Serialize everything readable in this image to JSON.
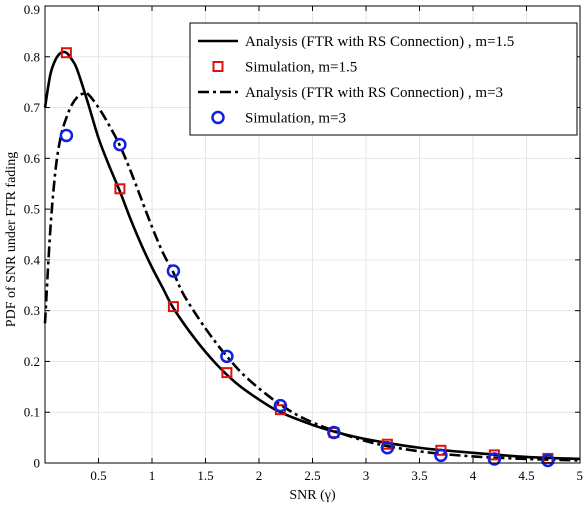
{
  "chart_data": {
    "type": "line",
    "xlabel": "SNR (γ)",
    "ylabel": "PDF of SNR under FTR fading",
    "xlim": [
      0,
      5
    ],
    "ylim": [
      0,
      0.9
    ],
    "x_ticks": [
      0.5,
      1,
      1.5,
      2,
      2.5,
      3,
      3.5,
      4,
      4.5,
      5
    ],
    "x_tick_labels": [
      "0.5",
      "1",
      "1.5",
      "2",
      "2.5",
      "3",
      "3.5",
      "4",
      "4.5",
      "5"
    ],
    "y_ticks": [
      0,
      0.1,
      0.2,
      0.3,
      0.4,
      0.5,
      0.6,
      0.7,
      0.8,
      0.9
    ],
    "y_tick_labels": [
      "0",
      "0.1",
      "0.2",
      "0.3",
      "0.4",
      "0.5",
      "0.6",
      "0.7",
      "0.8",
      "0.9"
    ],
    "grid": true,
    "legend_position": "top-right",
    "series": [
      {
        "name": "Analysis (FTR with RS Connection) , m=1.5",
        "kind": "line",
        "style": "solid",
        "color": "#000000",
        "x": [
          0.0,
          0.05,
          0.1,
          0.15,
          0.2,
          0.25,
          0.3,
          0.4,
          0.5,
          0.6,
          0.7,
          0.8,
          0.9,
          1.0,
          1.1,
          1.2,
          1.4,
          1.6,
          1.8,
          2.0,
          2.2,
          2.5,
          2.7,
          3.0,
          3.5,
          4.0,
          4.5,
          5.0
        ],
        "y": [
          0.7,
          0.765,
          0.795,
          0.808,
          0.808,
          0.795,
          0.775,
          0.71,
          0.64,
          0.585,
          0.535,
          0.48,
          0.43,
          0.385,
          0.345,
          0.305,
          0.245,
          0.195,
          0.155,
          0.125,
          0.1,
          0.075,
          0.062,
          0.047,
          0.03,
          0.02,
          0.012,
          0.008
        ]
      },
      {
        "name": "Simulation, m=1.5",
        "kind": "markers",
        "marker": "square",
        "color": "#e01010",
        "x": [
          0.2,
          0.7,
          1.2,
          1.7,
          2.2,
          2.7,
          3.2,
          3.7,
          4.2,
          4.7
        ],
        "y": [
          0.808,
          0.54,
          0.308,
          0.178,
          0.105,
          0.06,
          0.037,
          0.025,
          0.016,
          0.009
        ]
      },
      {
        "name": "Analysis (FTR with RS Connection) , m=3",
        "kind": "line",
        "style": "dashdot",
        "color": "#000000",
        "x": [
          0.0,
          0.05,
          0.1,
          0.15,
          0.2,
          0.25,
          0.3,
          0.35,
          0.4,
          0.5,
          0.6,
          0.7,
          0.8,
          0.9,
          1.0,
          1.1,
          1.2,
          1.3,
          1.5,
          1.7,
          1.9,
          2.2,
          2.5,
          3.0,
          3.5,
          4.0,
          4.5,
          5.0
        ],
        "y": [
          0.275,
          0.46,
          0.58,
          0.645,
          0.68,
          0.705,
          0.72,
          0.727,
          0.727,
          0.7,
          0.665,
          0.625,
          0.575,
          0.52,
          0.465,
          0.415,
          0.375,
          0.33,
          0.265,
          0.21,
          0.165,
          0.115,
          0.08,
          0.043,
          0.023,
          0.013,
          0.008,
          0.005
        ]
      },
      {
        "name": "Simulation, m=3",
        "kind": "markers",
        "marker": "circle",
        "color": "#1020e0",
        "x": [
          0.2,
          0.7,
          1.2,
          1.7,
          2.2,
          2.7,
          3.2,
          3.7,
          4.2,
          4.7
        ],
        "y": [
          0.645,
          0.627,
          0.378,
          0.21,
          0.113,
          0.06,
          0.03,
          0.015,
          0.008,
          0.005
        ]
      }
    ]
  }
}
